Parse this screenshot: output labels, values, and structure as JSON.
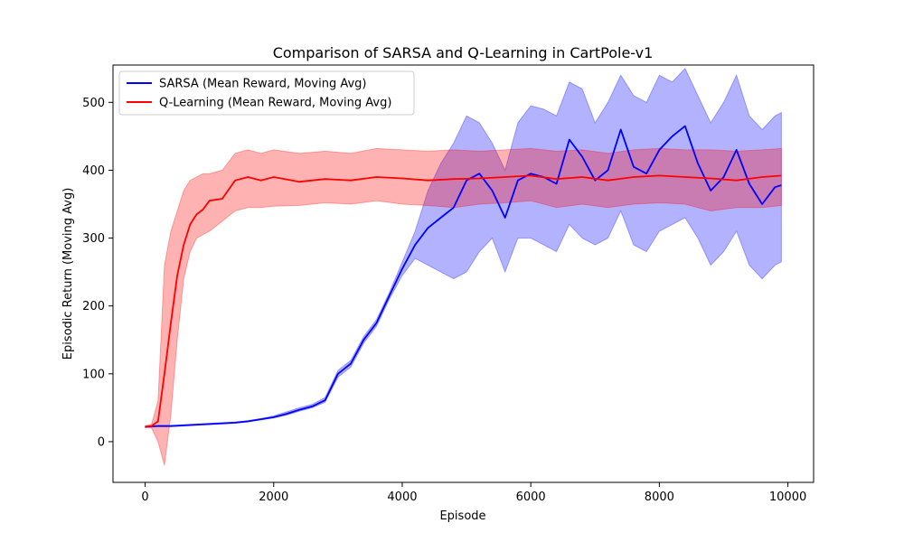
{
  "chart_data": {
    "type": "line",
    "title": "Comparison of SARSA and Q-Learning in CartPole-v1",
    "xlabel": "Episode",
    "ylabel": "Episodic Return (Moving Avg)",
    "xlim": [
      -500,
      10400
    ],
    "ylim": [
      -60,
      555
    ],
    "xticks": [
      0,
      2000,
      4000,
      6000,
      8000,
      10000
    ],
    "yticks": [
      0,
      100,
      200,
      300,
      400,
      500
    ],
    "grid": false,
    "legend_position": "upper-left",
    "series": [
      {
        "name": "SARSA (Mean Reward, Moving Avg)",
        "color": "#0000ff",
        "band_color": "#0000ff",
        "x": [
          0,
          200,
          400,
          600,
          800,
          1000,
          1200,
          1400,
          1600,
          1800,
          2000,
          2200,
          2400,
          2600,
          2800,
          3000,
          3200,
          3400,
          3600,
          3800,
          4000,
          4200,
          4400,
          4600,
          4800,
          5000,
          5200,
          5400,
          5600,
          5800,
          6000,
          6200,
          6400,
          6600,
          6800,
          7000,
          7200,
          7400,
          7600,
          7800,
          8000,
          8200,
          8400,
          8600,
          8800,
          9000,
          9200,
          9400,
          9600,
          9800,
          9900
        ],
        "mean": [
          22,
          23,
          23,
          24,
          25,
          26,
          27,
          28,
          30,
          33,
          36,
          41,
          47,
          52,
          61,
          100,
          115,
          150,
          175,
          215,
          255,
          290,
          315,
          330,
          345,
          385,
          395,
          370,
          330,
          385,
          395,
          390,
          380,
          445,
          420,
          385,
          400,
          460,
          405,
          395,
          430,
          450,
          465,
          410,
          370,
          390,
          430,
          380,
          350,
          375,
          378
        ],
        "lower": [
          21,
          22,
          22,
          23,
          24,
          25,
          26,
          27,
          29,
          32,
          35,
          39,
          45,
          50,
          58,
          95,
          110,
          145,
          170,
          210,
          245,
          270,
          260,
          250,
          240,
          250,
          280,
          300,
          250,
          300,
          300,
          290,
          280,
          320,
          300,
          290,
          300,
          340,
          290,
          280,
          310,
          320,
          330,
          300,
          260,
          280,
          310,
          260,
          240,
          260,
          265
        ],
        "upper": [
          23,
          24,
          24,
          25,
          26,
          27,
          28,
          29,
          31,
          34,
          38,
          44,
          50,
          55,
          65,
          105,
          120,
          155,
          180,
          220,
          265,
          310,
          370,
          410,
          440,
          480,
          470,
          440,
          400,
          470,
          495,
          490,
          480,
          530,
          520,
          470,
          500,
          540,
          510,
          500,
          540,
          530,
          550,
          510,
          470,
          500,
          540,
          480,
          460,
          480,
          485
        ]
      },
      {
        "name": "Q-Learning (Mean Reward, Moving Avg)",
        "color": "#ff0000",
        "band_color": "#ff0000",
        "x": [
          0,
          100,
          200,
          300,
          400,
          500,
          600,
          700,
          800,
          900,
          1000,
          1200,
          1400,
          1600,
          1800,
          2000,
          2400,
          2800,
          3200,
          3600,
          4000,
          4400,
          4800,
          5200,
          5600,
          6000,
          6400,
          6800,
          7200,
          7600,
          8000,
          8400,
          8800,
          9200,
          9600,
          9900
        ],
        "mean": [
          22,
          23,
          30,
          100,
          175,
          245,
          290,
          320,
          335,
          342,
          355,
          358,
          385,
          390,
          385,
          390,
          383,
          387,
          385,
          390,
          388,
          385,
          387,
          388,
          390,
          392,
          387,
          390,
          385,
          390,
          392,
          390,
          388,
          385,
          390,
          392
        ],
        "lower": [
          21,
          20,
          0,
          -35,
          40,
          150,
          240,
          280,
          300,
          305,
          310,
          325,
          340,
          345,
          345,
          347,
          348,
          352,
          350,
          355,
          350,
          348,
          345,
          350,
          352,
          355,
          345,
          350,
          345,
          350,
          352,
          350,
          340,
          345,
          345,
          348
        ],
        "upper": [
          23,
          26,
          60,
          260,
          310,
          340,
          370,
          385,
          390,
          395,
          395,
          400,
          425,
          430,
          425,
          430,
          425,
          428,
          425,
          432,
          430,
          428,
          430,
          428,
          430,
          432,
          428,
          430,
          425,
          430,
          432,
          430,
          430,
          428,
          430,
          432
        ]
      }
    ]
  }
}
